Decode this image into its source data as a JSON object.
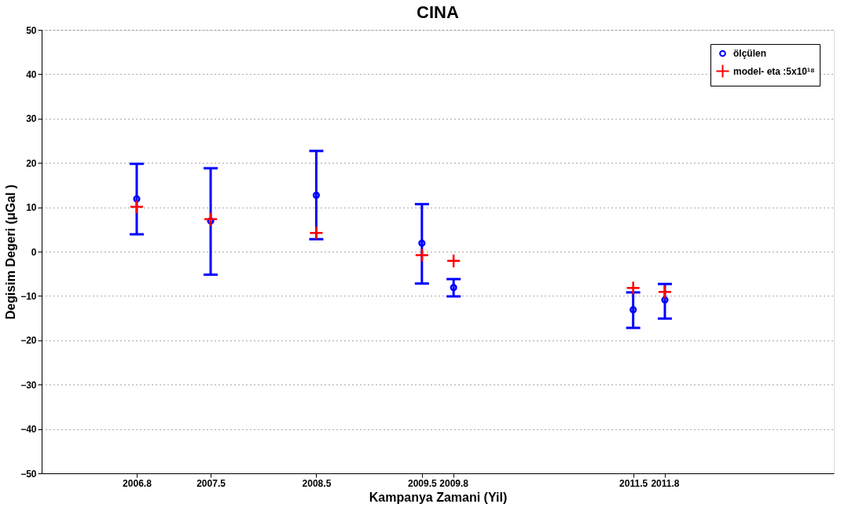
{
  "chart_data": {
    "type": "scatter",
    "title": "CINA",
    "xlabel": "Kampanya Zamani (Yil)",
    "ylabel": "Degisim Degeri (μGal )",
    "x": [
      2006.8,
      2007.5,
      2008.5,
      2009.5,
      2009.8,
      2011.5,
      2011.8
    ],
    "series": [
      {
        "name": "ölçülen",
        "color": "#0000ff",
        "marker": "circle",
        "values": [
          11.9,
          6.9,
          12.7,
          1.9,
          -8.1,
          -13.1,
          -10.9
        ],
        "errors": [
          [
            3.9,
            19.8
          ],
          [
            -5.2,
            18.8
          ],
          [
            2.8,
            22.7
          ],
          [
            -7.2,
            10.7
          ],
          [
            -10.1,
            -6.2
          ],
          [
            -17.2,
            -9.2
          ],
          [
            -15.1,
            -7.3
          ]
        ]
      },
      {
        "name": "model- eta :5x10¹⁸",
        "color": "#ff0000",
        "marker": "cross",
        "values": [
          10.1,
          7.3,
          4.2,
          -0.8,
          -2.1,
          -8.2,
          -9.1
        ]
      }
    ],
    "xlim": [
      2005.9,
      2013.4
    ],
    "xticks": [
      2006.8,
      2007.5,
      2008.5,
      2009.5,
      2009.8,
      2011.5,
      2011.8
    ],
    "ylim": [
      -50,
      50
    ],
    "yticks": [
      -50,
      -40,
      -30,
      -20,
      -10,
      0,
      10,
      20,
      30,
      40,
      50
    ],
    "grid": "y",
    "legend": "top right"
  }
}
